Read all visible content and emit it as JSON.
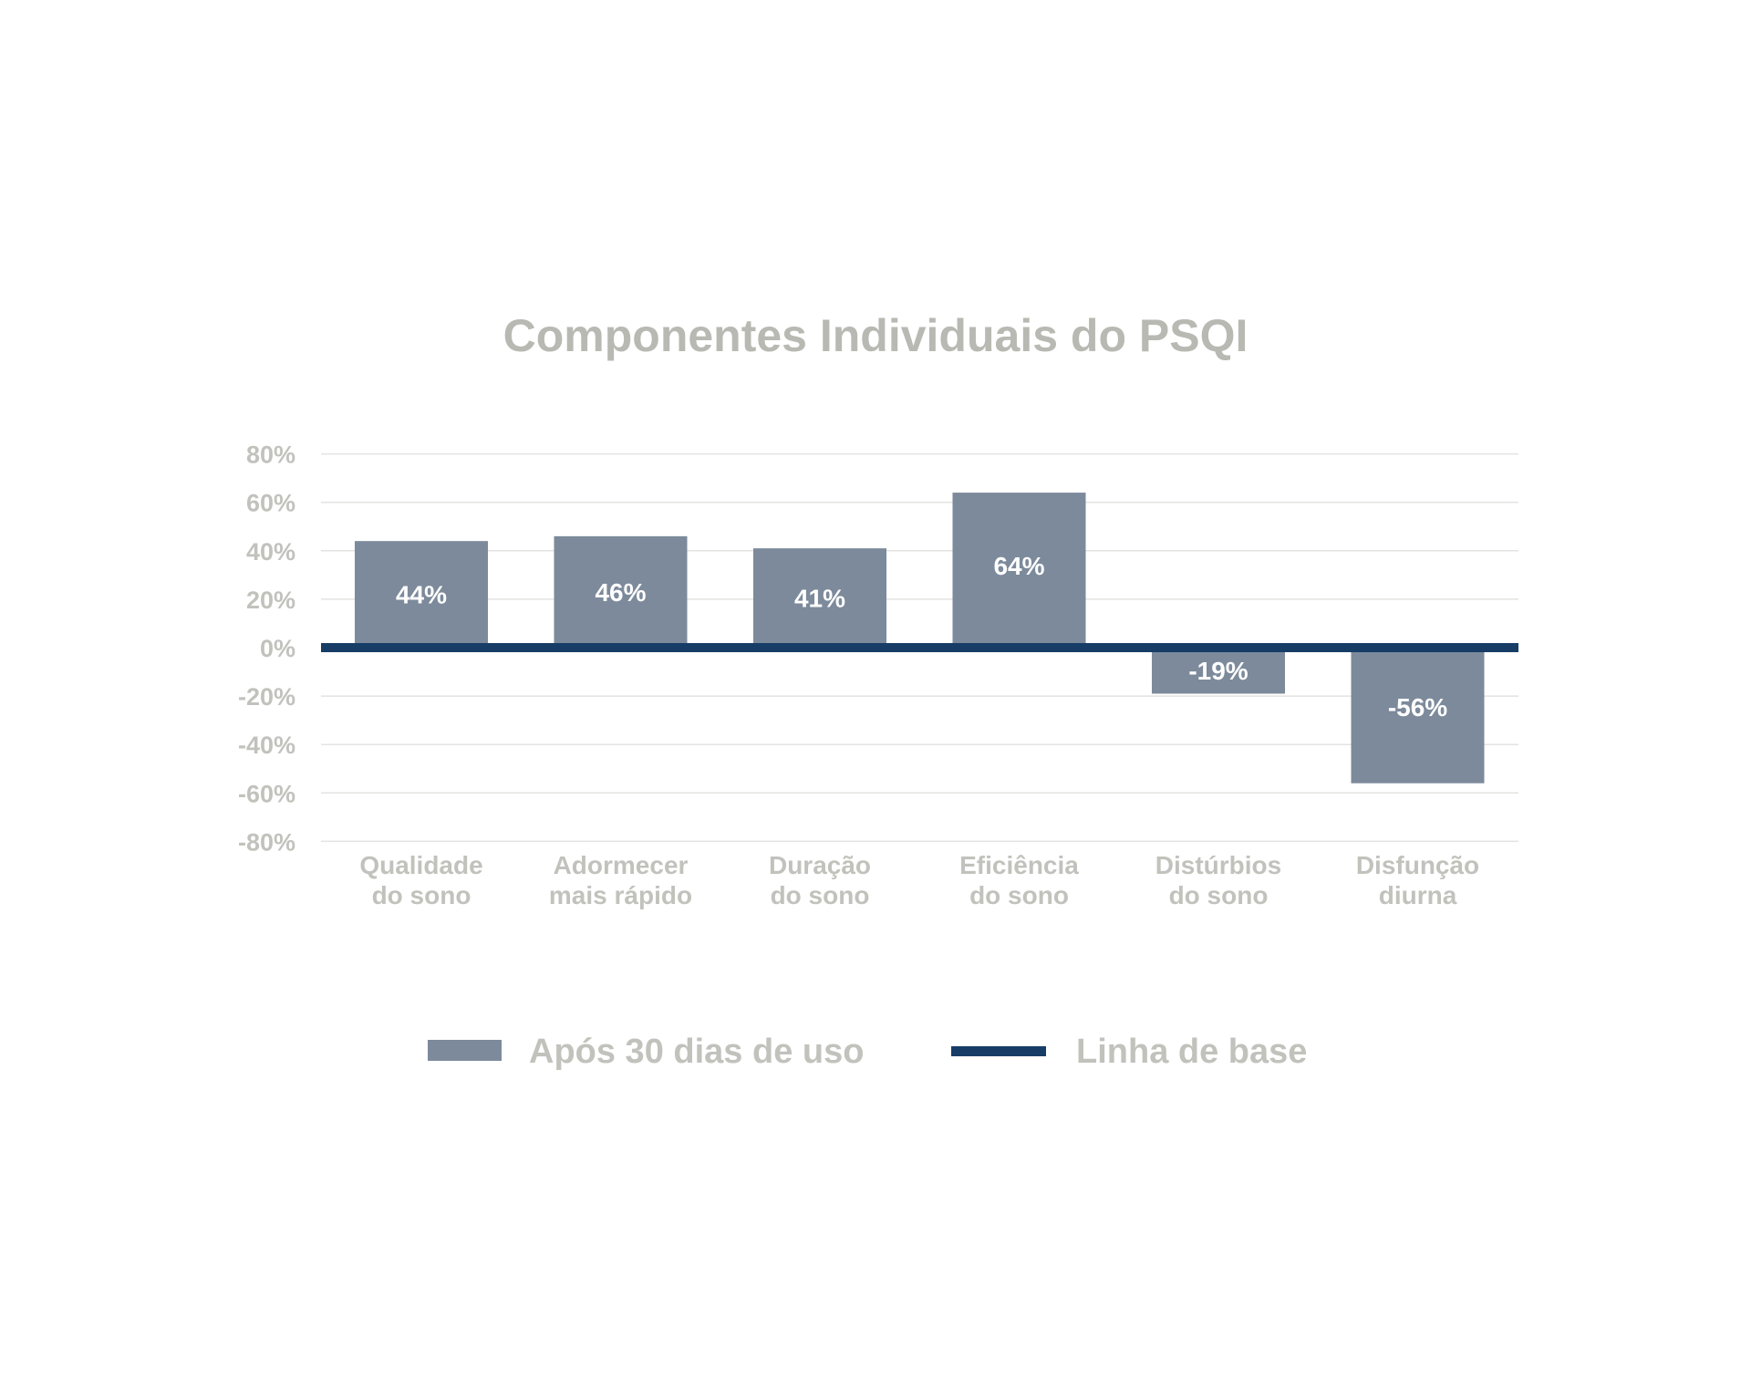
{
  "chart_data": {
    "type": "bar",
    "title": "Componentes Individuais do PSQI",
    "categories": [
      [
        "Qualidade",
        "do sono"
      ],
      [
        "Adormecer",
        "mais rápido"
      ],
      [
        "Duração",
        "do sono"
      ],
      [
        "Eficiência",
        "do sono"
      ],
      [
        "Distúrbios",
        "do sono"
      ],
      [
        "Disfunção",
        "diurna"
      ]
    ],
    "series": [
      {
        "name": "Após 30 dias de uso",
        "values": [
          44,
          46,
          41,
          64,
          -19,
          -56
        ],
        "labels": [
          "44%",
          "46%",
          "41%",
          "64%",
          "-19%",
          "-56%"
        ],
        "color": "#7c8a9b"
      }
    ],
    "baseline": {
      "name": "Linha de base",
      "value": 0,
      "color": "#173d67"
    },
    "y_ticks": [
      80,
      60,
      40,
      20,
      0,
      -20,
      -40,
      -60,
      -80
    ],
    "y_tick_labels": [
      "80%",
      "60%",
      "40%",
      "20%",
      "0%",
      "-20%",
      "-40%",
      "-60%",
      "-80%"
    ],
    "ylim": [
      -80,
      80
    ],
    "grid": true,
    "legend_position": "bottom",
    "xlabel": "",
    "ylabel": ""
  }
}
